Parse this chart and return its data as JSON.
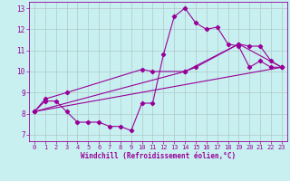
{
  "xlabel": "Windchill (Refroidissement éolien,°C)",
  "bg_color": "#c8f0f0",
  "line_color": "#990099",
  "grid_color": "#b0c8c8",
  "xlim": [
    -0.5,
    23.5
  ],
  "ylim": [
    6.7,
    13.3
  ],
  "yticks": [
    7,
    8,
    9,
    10,
    11,
    12,
    13
  ],
  "xticks": [
    0,
    1,
    2,
    3,
    4,
    5,
    6,
    7,
    8,
    9,
    10,
    11,
    12,
    13,
    14,
    15,
    16,
    17,
    18,
    19,
    20,
    21,
    22,
    23
  ],
  "series1_x": [
    0,
    1,
    2,
    3,
    4,
    5,
    6,
    7,
    8,
    9,
    10,
    11,
    12,
    13,
    14,
    15,
    16,
    17,
    18,
    19,
    20,
    21,
    22,
    23
  ],
  "series1_y": [
    8.1,
    8.6,
    8.6,
    8.1,
    7.6,
    7.6,
    7.6,
    7.4,
    7.4,
    7.2,
    8.5,
    8.5,
    10.8,
    12.6,
    13.0,
    12.3,
    12.0,
    12.1,
    11.3,
    11.2,
    10.2,
    10.5,
    10.2,
    10.2
  ],
  "series2_x": [
    0,
    1,
    3,
    10,
    11,
    14,
    15,
    19,
    20,
    21,
    22,
    23
  ],
  "series2_y": [
    8.1,
    8.7,
    9.0,
    10.1,
    10.0,
    10.0,
    10.2,
    11.3,
    11.2,
    11.2,
    10.5,
    10.2
  ],
  "series3_x": [
    0,
    23
  ],
  "series3_y": [
    8.1,
    10.2
  ],
  "series4_x": [
    0,
    14,
    19,
    23
  ],
  "series4_y": [
    8.1,
    10.0,
    11.3,
    10.2
  ]
}
